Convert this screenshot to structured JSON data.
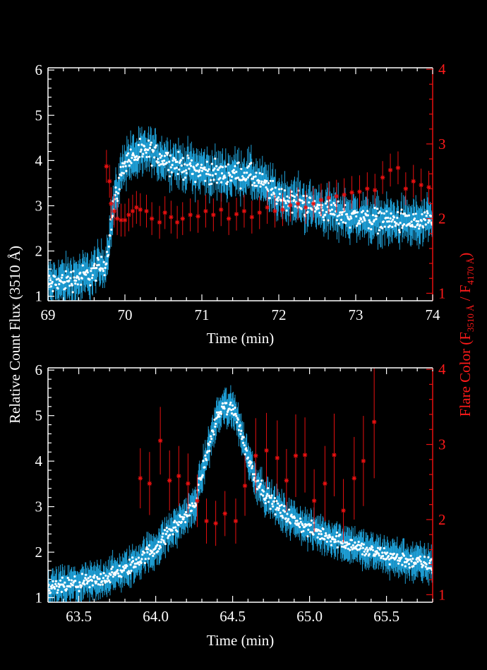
{
  "colors": {
    "background": "#000000",
    "axes": "#ffffff",
    "flux_points": "#ffffff",
    "flux_errorbars": "#1f9fd6",
    "color_series": "#e81010"
  },
  "labels": {
    "ylabel_left": "Relative Count Flux (3510 Å)",
    "ylabel_right_main": "Flare Color (F",
    "ylabel_right_sub1": "3510 Å",
    "ylabel_right_mid": " / F",
    "ylabel_right_sub2": "4170 Å",
    "ylabel_right_end": ")"
  },
  "chart_data": [
    {
      "type": "scatter",
      "xlabel": "Time (min)",
      "ylabel": "Relative Count Flux (3510 Å)",
      "y2label": "Flare Color (F3510 Å / F4170 Å)",
      "xlim": [
        69,
        74
      ],
      "ylim": [
        0.9,
        6.05
      ],
      "y2lim": [
        0.9,
        4.02
      ],
      "xticks": [
        "69",
        "70",
        "71",
        "72",
        "73",
        "74"
      ],
      "yticks": [
        "1",
        "2",
        "3",
        "4",
        "5",
        "6"
      ],
      "y2ticks": [
        "1",
        "2",
        "3",
        "4"
      ],
      "series": [
        {
          "name": "Relative count flux",
          "axis": "left",
          "style": "dots+errorbars",
          "profile": [
            [
              69.0,
              1.25
            ],
            [
              69.5,
              1.45
            ],
            [
              69.75,
              1.7
            ],
            [
              69.85,
              3.0
            ],
            [
              70.0,
              4.0
            ],
            [
              70.3,
              4.2
            ],
            [
              70.7,
              3.9
            ],
            [
              71.2,
              3.7
            ],
            [
              71.6,
              3.7
            ],
            [
              72.0,
              3.2
            ],
            [
              72.5,
              2.95
            ],
            [
              73.0,
              2.75
            ],
            [
              73.5,
              2.65
            ],
            [
              74.0,
              2.6
            ]
          ],
          "noise": 0.18,
          "errorbar": 0.35
        },
        {
          "name": "Flare color",
          "axis": "right",
          "style": "asterisk+errorbars",
          "x": [
            69.76,
            69.8,
            69.82,
            69.86,
            69.9,
            69.95,
            70.0,
            70.05,
            70.1,
            70.15,
            70.2,
            70.28,
            70.35,
            70.45,
            70.52,
            70.6,
            70.68,
            70.75,
            70.85,
            70.95,
            71.05,
            71.15,
            71.25,
            71.35,
            71.45,
            71.55,
            71.65,
            71.75,
            71.85,
            71.95,
            72.05,
            72.15,
            72.25,
            72.35,
            72.45,
            72.55,
            72.65,
            72.75,
            72.85,
            72.95,
            73.05,
            73.15,
            73.25,
            73.35,
            73.45,
            73.55,
            73.65,
            73.75,
            73.85,
            73.95
          ],
          "y": [
            2.7,
            2.5,
            2.2,
            2.1,
            2.0,
            1.98,
            1.98,
            2.05,
            2.1,
            2.15,
            2.12,
            2.1,
            2.0,
            1.95,
            2.08,
            2.02,
            1.95,
            2.0,
            2.05,
            2.03,
            2.1,
            2.05,
            2.12,
            2.0,
            2.06,
            2.1,
            2.02,
            2.08,
            2.15,
            2.1,
            2.12,
            2.18,
            2.2,
            2.15,
            2.2,
            2.25,
            2.28,
            2.3,
            2.32,
            2.35,
            2.36,
            2.4,
            2.38,
            2.55,
            2.65,
            2.68,
            2.4,
            2.5,
            2.45,
            2.42
          ],
          "yerr": 0.22
        }
      ]
    },
    {
      "type": "scatter",
      "xlabel": "Time (min)",
      "ylabel": "Relative Count Flux (3510 Å)",
      "y2label": "Flare Color (F3510 Å / F4170 Å)",
      "xlim": [
        63.3,
        65.8
      ],
      "ylim": [
        0.9,
        6.05
      ],
      "y2lim": [
        0.9,
        4.02
      ],
      "xticks": [
        "63.5",
        "64.0",
        "64.5",
        "65.0",
        "65.5"
      ],
      "yticks": [
        "1",
        "2",
        "3",
        "4",
        "5",
        "6"
      ],
      "y2ticks": [
        "1",
        "2",
        "3",
        "4"
      ],
      "series": [
        {
          "name": "Relative count flux",
          "axis": "left",
          "style": "dots+errorbars",
          "profile": [
            [
              63.3,
              1.2
            ],
            [
              63.6,
              1.35
            ],
            [
              63.8,
              1.6
            ],
            [
              64.0,
              2.1
            ],
            [
              64.15,
              2.65
            ],
            [
              64.25,
              3.0
            ],
            [
              64.32,
              4.0
            ],
            [
              64.4,
              5.0
            ],
            [
              64.45,
              5.2
            ],
            [
              64.52,
              5.1
            ],
            [
              64.58,
              4.3
            ],
            [
              64.65,
              3.6
            ],
            [
              64.75,
              3.1
            ],
            [
              64.85,
              2.8
            ],
            [
              65.0,
              2.5
            ],
            [
              65.2,
              2.25
            ],
            [
              65.4,
              2.0
            ],
            [
              65.6,
              1.85
            ],
            [
              65.8,
              1.7
            ]
          ],
          "noise": 0.12,
          "errorbar": 0.3
        },
        {
          "name": "Flare color",
          "axis": "right",
          "style": "asterisk+errorbars",
          "x": [
            63.9,
            63.96,
            64.03,
            64.09,
            64.15,
            64.21,
            64.27,
            64.33,
            64.39,
            64.45,
            64.52,
            64.58,
            64.65,
            64.72,
            64.79,
            64.85,
            64.91,
            64.97,
            65.03,
            65.1,
            65.16,
            65.22,
            65.29,
            65.35,
            65.42
          ],
          "y": [
            2.55,
            2.48,
            3.05,
            2.52,
            2.58,
            2.48,
            2.25,
            1.98,
            1.95,
            2.08,
            1.98,
            2.45,
            2.85,
            2.92,
            2.82,
            2.52,
            2.85,
            2.86,
            2.25,
            2.48,
            2.86,
            2.12,
            2.55,
            2.78,
            3.3
          ],
          "yerr": [
            0.4,
            0.42,
            0.45,
            0.4,
            0.4,
            0.4,
            0.35,
            0.3,
            0.3,
            0.3,
            0.3,
            0.4,
            0.5,
            0.5,
            0.5,
            0.42,
            0.55,
            0.5,
            0.42,
            0.5,
            0.55,
            0.42,
            0.55,
            0.6,
            0.75
          ]
        }
      ]
    }
  ]
}
